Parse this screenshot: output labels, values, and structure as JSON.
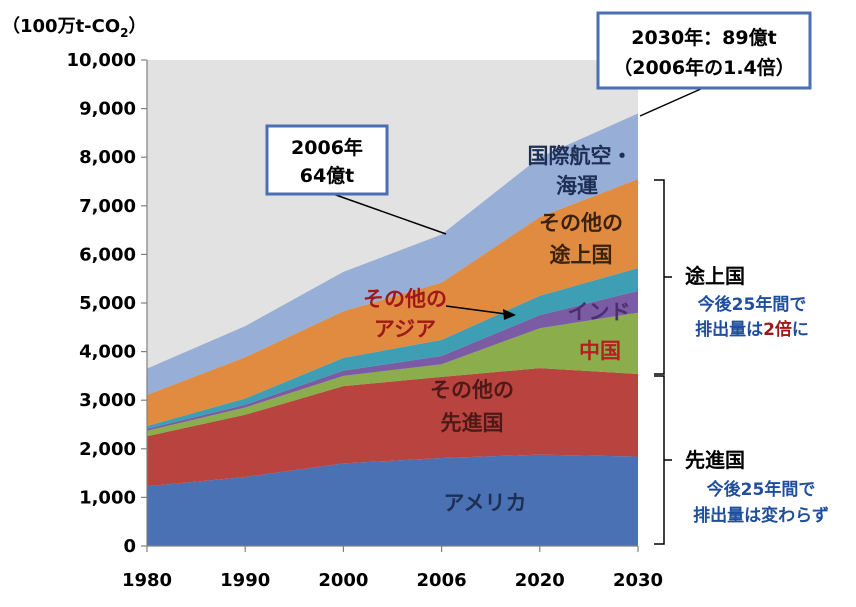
{
  "chart_data": {
    "type": "area",
    "stacked": true,
    "unit_label": "（100万t-CO2）",
    "unit_label_parts": [
      "（100万t-CO",
      "2",
      "）"
    ],
    "x": [
      "1980",
      "1990",
      "2000",
      "2006",
      "2020",
      "2030"
    ],
    "ylim": [
      0,
      10000
    ],
    "y_ticks": [
      "0",
      "1,000",
      "2,000",
      "3,000",
      "4,000",
      "5,000",
      "6,000",
      "7,000",
      "8,000",
      "9,000",
      "10,000"
    ],
    "grid": false,
    "series": [
      {
        "name": "アメリカ",
        "color": "#4a71b4",
        "values": [
          1230,
          1420,
          1700,
          1810,
          1880,
          1840
        ]
      },
      {
        "name": "その他の先進国",
        "color": "#b9433f",
        "values": [
          1030,
          1280,
          1590,
          1670,
          1780,
          1700
        ]
      },
      {
        "name": "中国",
        "color": "#8cad4b",
        "values": [
          110,
          150,
          210,
          260,
          820,
          1260
        ]
      },
      {
        "name": "インド",
        "color": "#7b5ba3",
        "values": [
          40,
          55,
          110,
          170,
          270,
          450
        ]
      },
      {
        "name": "その他のアジア",
        "color": "#3e9fb4",
        "values": [
          60,
          130,
          260,
          330,
          400,
          470
        ]
      },
      {
        "name": "その他の途上国",
        "color": "#e08b3f",
        "values": [
          640,
          850,
          960,
          1180,
          1620,
          1830
        ]
      },
      {
        "name": "国際航空・海運",
        "color": "#97aed6",
        "values": [
          540,
          640,
          810,
          990,
          1230,
          1350
        ]
      }
    ],
    "area_labels": {
      "usa": "アメリカ",
      "other_dev_1": "その他の",
      "other_dev_2": "先進国",
      "china": "中国",
      "india": "インド",
      "other_asia_1": "その他の",
      "other_asia_2": "アジア",
      "other_devg_1": "その他の",
      "other_devg_2": "途上国",
      "intl_1": "国際航空・",
      "intl_2": "海運"
    },
    "callouts": {
      "c2006_line1": "2006年",
      "c2006_line2": "64億t",
      "c2030_line1": "2030年：89億t",
      "c2030_line2": "（2006年の1.4倍）"
    },
    "side_annotations": {
      "developing_head": "途上国",
      "developing_sub1": "今後25年間で",
      "developing_sub2a": "排出量は",
      "developing_sub2b": "2倍",
      "developing_sub2c": "に",
      "developed_head": "先進国",
      "developed_sub1": "今後25年間で",
      "developed_sub2": "排出量は変わらず"
    }
  }
}
